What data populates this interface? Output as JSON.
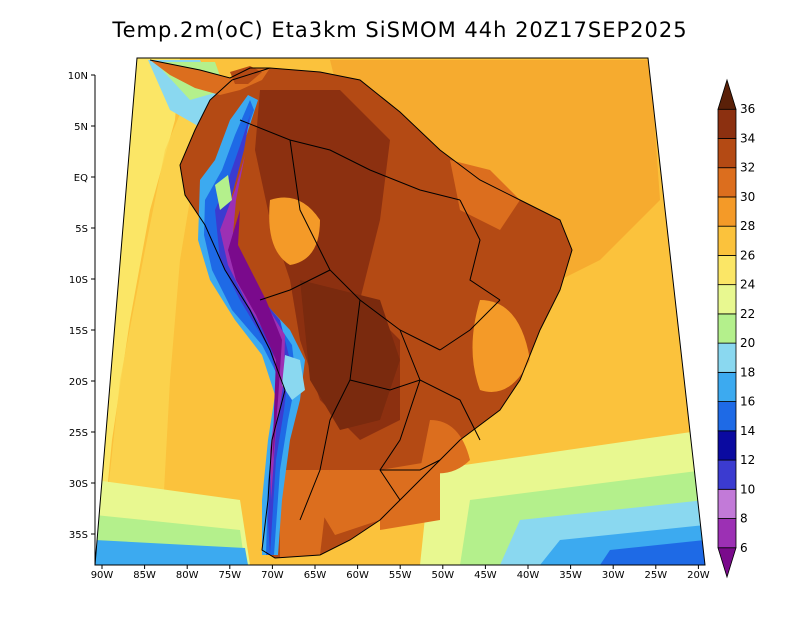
{
  "title": "Temp.2m(oC) Eta3km SiSMOM 44h 20Z17SEP2025",
  "map": {
    "variable": "2 m temperature",
    "units": "oC",
    "lat_ticks": [
      "10N",
      "5N",
      "EQ",
      "5S",
      "10S",
      "15S",
      "20S",
      "25S",
      "30S",
      "35S"
    ],
    "lon_ticks": [
      "90W",
      "85W",
      "80W",
      "75W",
      "70W",
      "65W",
      "60W",
      "55W",
      "50W",
      "45W",
      "40W",
      "35W",
      "30W",
      "25W",
      "20W"
    ]
  },
  "colorbar": {
    "levels": [
      "6",
      "8",
      "10",
      "12",
      "14",
      "16",
      "18",
      "20",
      "22",
      "24",
      "26",
      "28",
      "30",
      "32",
      "34",
      "36"
    ],
    "colors": [
      "#7a0a8c",
      "#9c30b4",
      "#c27ad8",
      "#3b3bd0",
      "#0a0aa0",
      "#1e6ae6",
      "#3caaf0",
      "#8ad8f0",
      "#b4f08c",
      "#e8f890",
      "#fbe666",
      "#fbc23c",
      "#f49a28",
      "#dc6e1e",
      "#b44a14",
      "#8c3010",
      "#5a2008"
    ]
  }
}
